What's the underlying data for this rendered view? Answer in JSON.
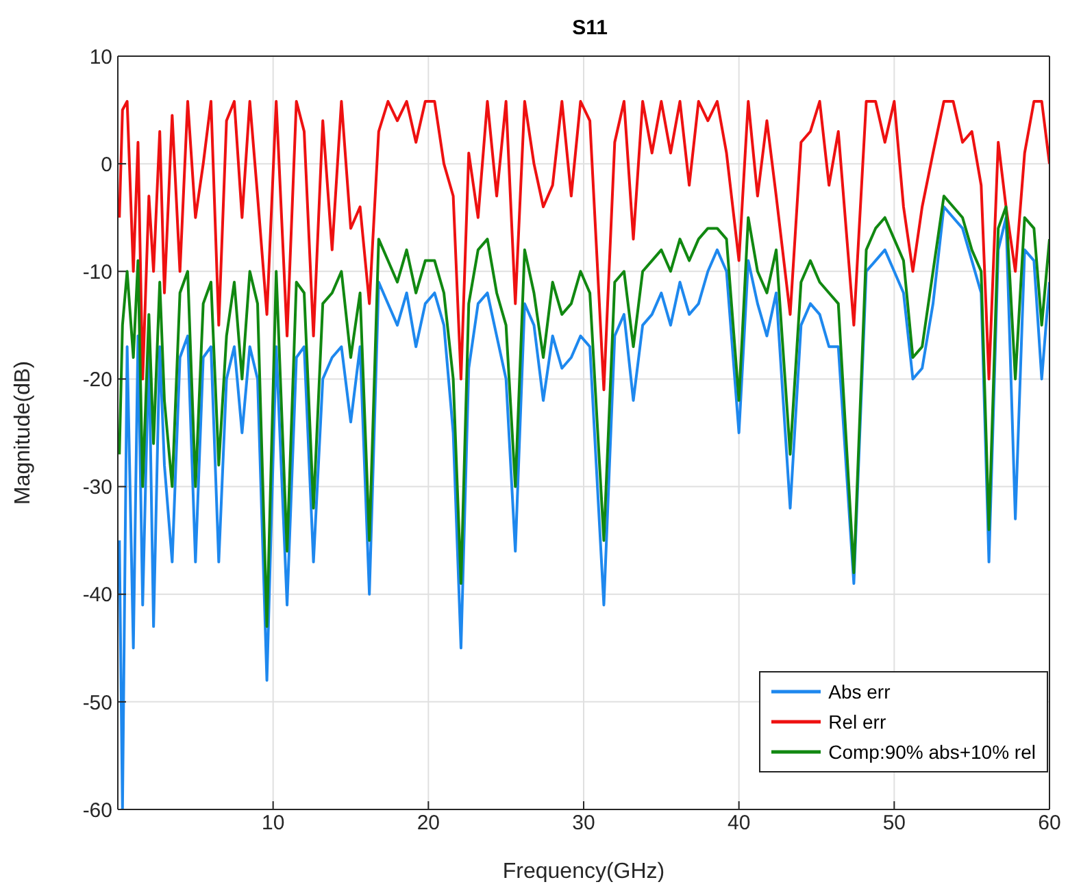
{
  "chart_data": {
    "type": "line",
    "title": "S11",
    "xlabel": "Frequency(GHz)",
    "ylabel": "Magnitude(dB)",
    "x": [
      0.1,
      0.3,
      0.6,
      1.0,
      1.3,
      1.6,
      2.0,
      2.3,
      2.7,
      3.0,
      3.5,
      4.0,
      4.5,
      5.0,
      5.5,
      6.0,
      6.5,
      7.0,
      7.5,
      8.0,
      8.5,
      9.0,
      9.6,
      10.2,
      10.9,
      11.5,
      12.0,
      12.6,
      13.2,
      13.8,
      14.4,
      15.0,
      15.6,
      16.2,
      16.8,
      17.4,
      18.0,
      18.6,
      19.2,
      19.8,
      20.4,
      21.0,
      21.6,
      22.1,
      22.6,
      23.2,
      23.8,
      24.4,
      25.0,
      25.6,
      26.2,
      26.8,
      27.4,
      28.0,
      28.6,
      29.2,
      29.8,
      30.4,
      31.3,
      32.0,
      32.6,
      33.2,
      33.8,
      34.4,
      35.0,
      35.6,
      36.2,
      36.8,
      37.4,
      38.0,
      38.6,
      39.2,
      40.0,
      40.6,
      41.2,
      41.8,
      42.4,
      43.3,
      44.0,
      44.6,
      45.2,
      45.8,
      46.4,
      47.4,
      48.2,
      48.8,
      49.4,
      50.0,
      50.6,
      51.2,
      51.8,
      52.5,
      53.2,
      53.8,
      54.4,
      55.0,
      55.6,
      56.1,
      56.7,
      57.2,
      57.8,
      58.4,
      59.0,
      59.5,
      60.0
    ],
    "series": [
      {
        "name": "Abs err",
        "color": "#1e88ee",
        "values": [
          -35,
          -60,
          -17,
          -45,
          -16,
          -41,
          -17,
          -43,
          -17,
          -28,
          -37,
          -18,
          -16,
          -37,
          -18,
          -17,
          -37,
          -20,
          -17,
          -25,
          -17,
          -20,
          -48,
          -17,
          -41,
          -18,
          -17,
          -37,
          -20,
          -18,
          -17,
          -24,
          -17,
          -40,
          -11,
          -13,
          -15,
          -12,
          -17,
          -13,
          -12,
          -15,
          -25,
          -45,
          -19,
          -13,
          -12,
          -16,
          -20,
          -36,
          -13,
          -15,
          -22,
          -16,
          -19,
          -18,
          -16,
          -17,
          -41,
          -16,
          -14,
          -22,
          -15,
          -14,
          -12,
          -15,
          -11,
          -14,
          -13,
          -10,
          -8,
          -10,
          -25,
          -9,
          -13,
          -16,
          -12,
          -32,
          -15,
          -13,
          -14,
          -17,
          -17,
          -39,
          -10,
          -9,
          -8,
          -10,
          -12,
          -20,
          -19,
          -13,
          -4,
          -5,
          -6,
          -9,
          -12,
          -37,
          -8,
          -5,
          -33,
          -8,
          -9,
          -20,
          -11
        ]
      },
      {
        "name": "Rel err",
        "color": "#ee1111",
        "values": [
          -5,
          5,
          5.8,
          -10,
          2,
          -20,
          -3,
          -10,
          3,
          -12,
          4.5,
          -10,
          5.8,
          -5,
          0,
          5.8,
          -15,
          4,
          5.8,
          -5,
          5.8,
          -3,
          -14,
          5.8,
          -16,
          5.8,
          3,
          -16,
          4,
          -8,
          5.8,
          -6,
          -4,
          -13,
          3,
          5.8,
          4,
          5.8,
          2,
          5.8,
          5.8,
          0,
          -3,
          -20,
          1,
          -5,
          5.8,
          -3,
          5.8,
          -13,
          5.8,
          0,
          -4,
          -2,
          5.8,
          -3,
          5.8,
          4,
          -21,
          2,
          5.8,
          -7,
          5.8,
          1,
          5.8,
          1,
          5.8,
          -2,
          5.8,
          4,
          5.8,
          1,
          -9,
          5.8,
          -3,
          4,
          -3,
          -14,
          2,
          3,
          5.8,
          -2,
          3,
          -15,
          5.8,
          5.8,
          2,
          5.8,
          -4,
          -10,
          -4,
          1,
          5.8,
          5.8,
          2,
          3,
          -2,
          -20,
          2,
          -4,
          -10,
          1,
          5.8,
          5.8,
          0
        ]
      },
      {
        "name": "Comp:90% abs+10% rel",
        "color": "#118811",
        "values": [
          -27,
          -15,
          -10,
          -18,
          -9,
          -30,
          -14,
          -26,
          -11,
          -22,
          -30,
          -12,
          -10,
          -30,
          -13,
          -11,
          -28,
          -16,
          -11,
          -20,
          -10,
          -13,
          -43,
          -10,
          -36,
          -11,
          -12,
          -32,
          -13,
          -12,
          -10,
          -18,
          -12,
          -35,
          -7,
          -9,
          -11,
          -8,
          -12,
          -9,
          -9,
          -12,
          -20,
          -39,
          -13,
          -8,
          -7,
          -12,
          -15,
          -30,
          -8,
          -12,
          -18,
          -11,
          -14,
          -13,
          -10,
          -12,
          -35,
          -11,
          -10,
          -17,
          -10,
          -9,
          -8,
          -10,
          -7,
          -9,
          -7,
          -6,
          -6,
          -7,
          -22,
          -5,
          -10,
          -12,
          -8,
          -27,
          -11,
          -9,
          -11,
          -12,
          -13,
          -38,
          -8,
          -6,
          -5,
          -7,
          -9,
          -18,
          -17,
          -10,
          -3,
          -4,
          -5,
          -8,
          -10,
          -34,
          -6,
          -4,
          -20,
          -5,
          -6,
          -15,
          -7
        ]
      }
    ],
    "xlim": [
      0,
      60
    ],
    "xticks": [
      10,
      20,
      30,
      40,
      50,
      60
    ],
    "ylim": [
      -60,
      10
    ],
    "yticks": [
      -60,
      -50,
      -40,
      -30,
      -20,
      -10,
      0,
      10
    ],
    "grid": true,
    "legend": "bottom right"
  }
}
